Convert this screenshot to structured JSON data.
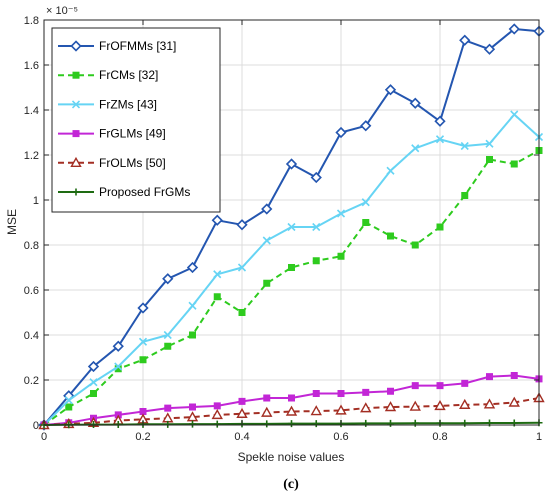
{
  "chart_data": {
    "type": "line",
    "xlabel": "Spekle noise values",
    "ylabel": "MSE",
    "scale_label": "× 10⁻⁵",
    "caption": "(c)",
    "xlim": [
      0,
      1
    ],
    "ylim": [
      0,
      1.8
    ],
    "xticks": [
      "0",
      "0.2",
      "0.4",
      "0.6",
      "0.8",
      "1"
    ],
    "yticks": [
      "0",
      "0.2",
      "0.4",
      "0.6",
      "0.8",
      "1",
      "1.2",
      "1.4",
      "1.6",
      "1.8"
    ],
    "grid": true,
    "legend_position": "top-left",
    "x": [
      0,
      0.05,
      0.1,
      0.15,
      0.2,
      0.25,
      0.3,
      0.35,
      0.4,
      0.45,
      0.5,
      0.55,
      0.6,
      0.65,
      0.7,
      0.75,
      0.8,
      0.85,
      0.9,
      0.95,
      1.0
    ],
    "series": [
      {
        "name": "FrOFMMs [31]",
        "color": "#2456b0",
        "dash": "solid",
        "marker": "diamond",
        "values": [
          0.0,
          0.13,
          0.26,
          0.35,
          0.52,
          0.65,
          0.7,
          0.91,
          0.89,
          0.96,
          1.16,
          1.1,
          1.3,
          1.33,
          1.49,
          1.43,
          1.35,
          1.71,
          1.67,
          1.76,
          1.75
        ]
      },
      {
        "name": "FrCMs [32]",
        "color": "#2ecb1e",
        "dash": "dashed",
        "marker": "square",
        "values": [
          0.0,
          0.08,
          0.14,
          0.25,
          0.29,
          0.35,
          0.4,
          0.57,
          0.5,
          0.63,
          0.7,
          0.73,
          0.75,
          0.9,
          0.84,
          0.8,
          0.88,
          1.02,
          1.18,
          1.16,
          1.22
        ]
      },
      {
        "name": "FrZMs [43]",
        "color": "#66d4f4",
        "dash": "solid",
        "marker": "x",
        "values": [
          0.0,
          0.11,
          0.19,
          0.26,
          0.37,
          0.4,
          0.53,
          0.67,
          0.7,
          0.82,
          0.88,
          0.88,
          0.94,
          0.99,
          1.13,
          1.23,
          1.27,
          1.24,
          1.25,
          1.38,
          1.28
        ]
      },
      {
        "name": "FrGLMs [49]",
        "color": "#c226d6",
        "dash": "solid",
        "marker": "square",
        "values": [
          0.0,
          0.01,
          0.03,
          0.045,
          0.06,
          0.075,
          0.08,
          0.085,
          0.105,
          0.12,
          0.12,
          0.14,
          0.14,
          0.145,
          0.15,
          0.175,
          0.175,
          0.185,
          0.215,
          0.22,
          0.205
        ]
      },
      {
        "name": "FrOLMs [50]",
        "color": "#a32e23",
        "dash": "dashed",
        "marker": "triangle",
        "values": [
          0.0,
          0.005,
          0.01,
          0.02,
          0.025,
          0.03,
          0.035,
          0.045,
          0.05,
          0.055,
          0.06,
          0.062,
          0.065,
          0.075,
          0.08,
          0.082,
          0.085,
          0.09,
          0.092,
          0.1,
          0.12
        ]
      },
      {
        "name": "Proposed FrGMs",
        "color": "#1e6b12",
        "dash": "solid",
        "marker": "plus",
        "values": [
          0.0,
          0.001,
          0.002,
          0.002,
          0.003,
          0.003,
          0.004,
          0.004,
          0.005,
          0.005,
          0.006,
          0.006,
          0.006,
          0.007,
          0.007,
          0.008,
          0.008,
          0.008,
          0.009,
          0.009,
          0.01
        ]
      }
    ]
  }
}
